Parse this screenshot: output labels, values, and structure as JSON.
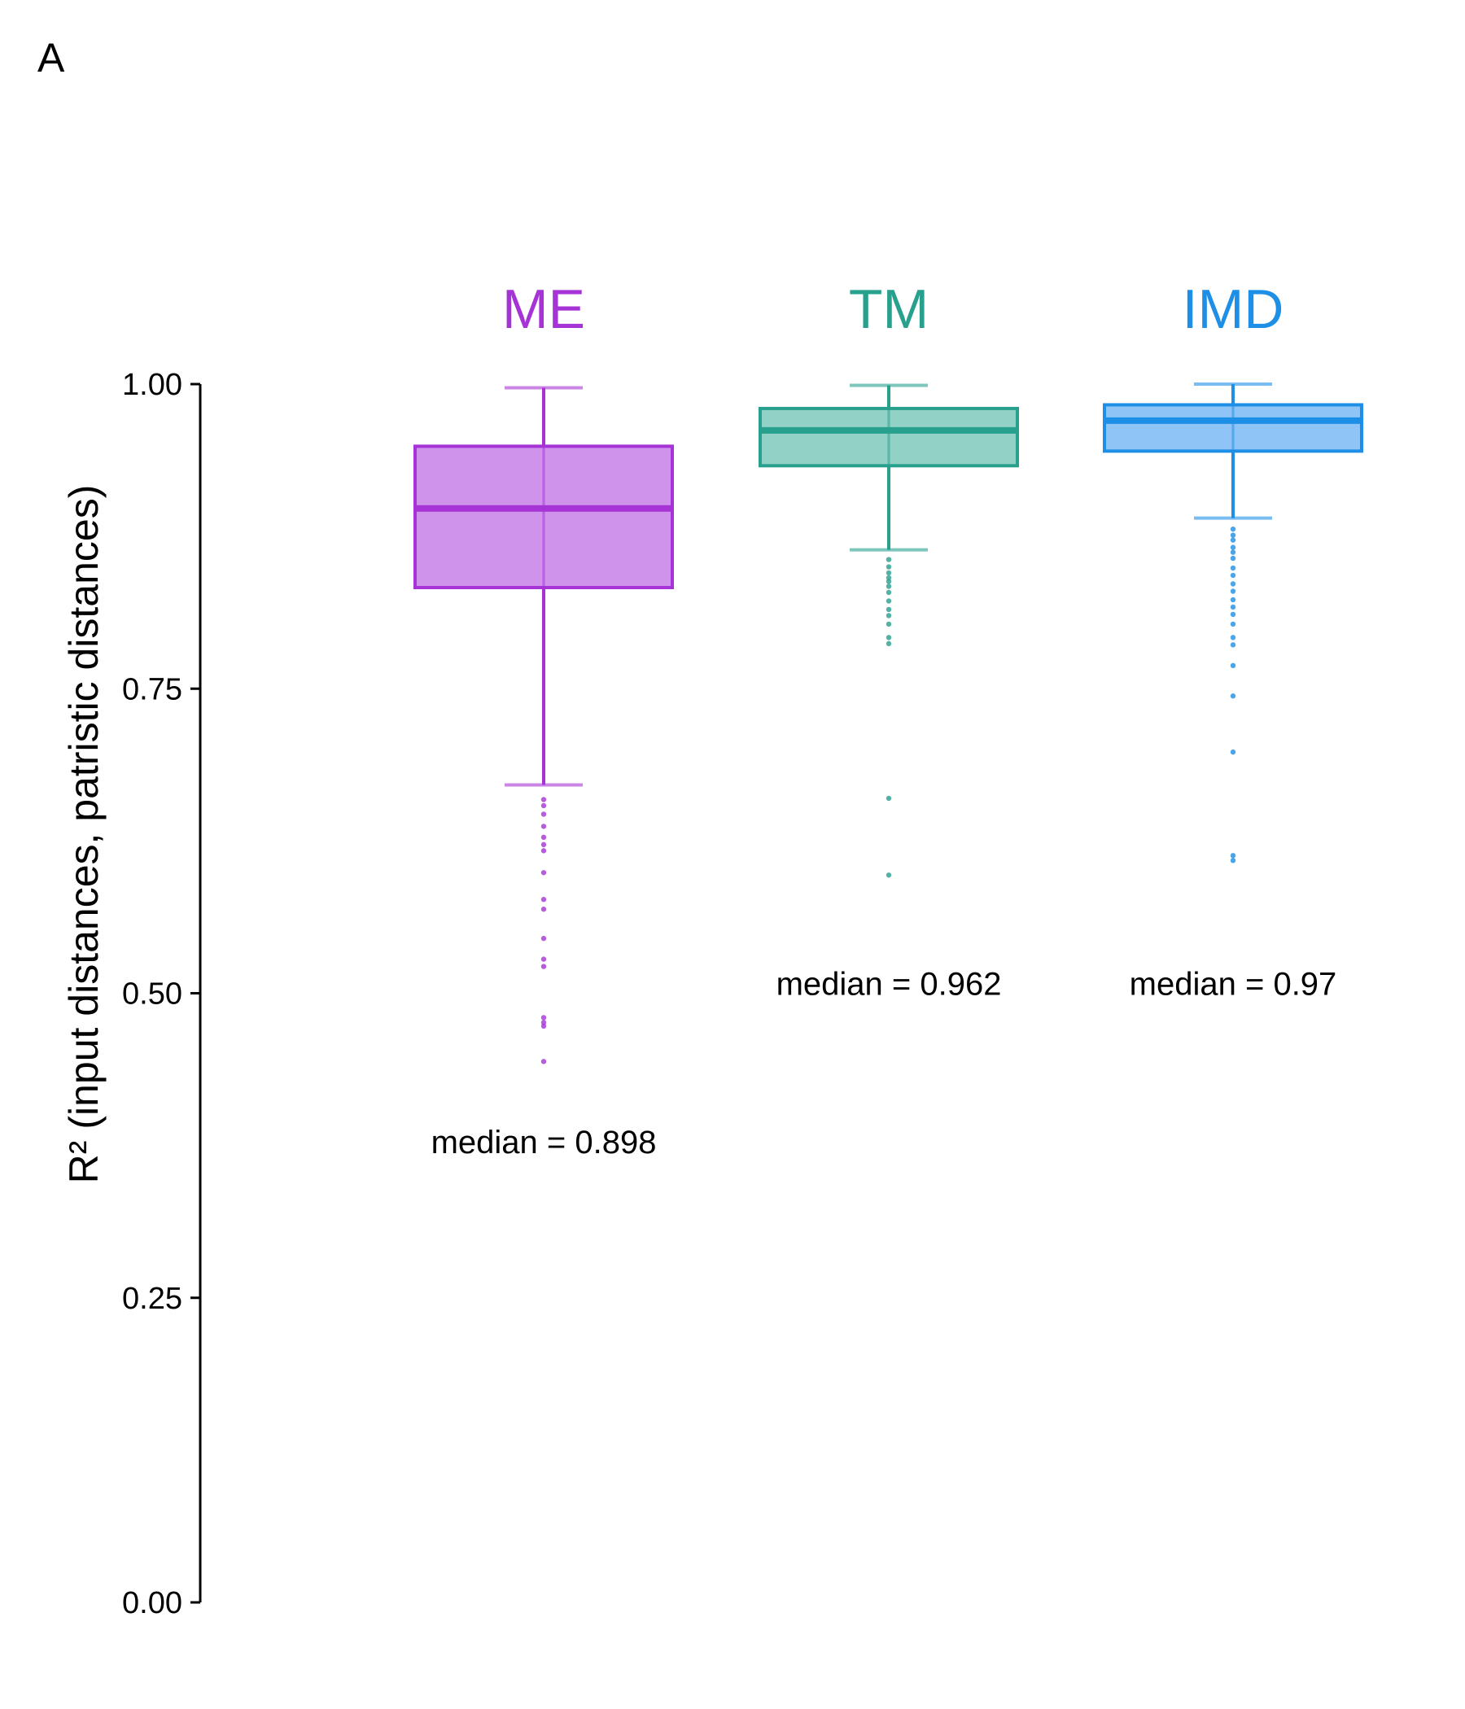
{
  "panel_label": "A",
  "chart_data": {
    "type": "box",
    "ylabel": "R² (input distances, patristic distances)",
    "ylim": [
      0,
      1
    ],
    "yticks": [
      "0.00",
      "0.25",
      "0.50",
      "0.75",
      "1.00"
    ],
    "ytick_values": [
      0,
      0.25,
      0.5,
      0.75,
      1.0
    ],
    "series": [
      {
        "name": "ME",
        "color": "#a633d6",
        "fill": "#cd8deb",
        "q1": 0.833,
        "median": 0.898,
        "q3": 0.949,
        "whisker_low": 0.671,
        "whisker_high": 0.997,
        "outliers": [
          0.659,
          0.654,
          0.647,
          0.637,
          0.628,
          0.622,
          0.617,
          0.599,
          0.577,
          0.569,
          0.545,
          0.528,
          0.522,
          0.48,
          0.476,
          0.473,
          0.444
        ],
        "median_label": "median = 0.898",
        "median_label_y": 0.378
      },
      {
        "name": "TM",
        "color": "#27a08d",
        "fill": "#8bcfc3",
        "q1": 0.933,
        "median": 0.962,
        "q3": 0.98,
        "whisker_low": 0.864,
        "whisker_high": 0.999,
        "outliers": [
          0.856,
          0.85,
          0.845,
          0.841,
          0.838,
          0.834,
          0.829,
          0.822,
          0.815,
          0.81,
          0.803,
          0.792,
          0.787,
          0.66,
          0.597
        ],
        "median_label": "median = 0.962",
        "median_label_y": 0.508
      },
      {
        "name": "IMD",
        "color": "#1e8fe6",
        "fill": "#88c1f5",
        "q1": 0.945,
        "median": 0.97,
        "q3": 0.983,
        "whisker_low": 0.89,
        "whisker_high": 1.0,
        "outliers": [
          0.881,
          0.876,
          0.872,
          0.866,
          0.862,
          0.857,
          0.849,
          0.843,
          0.836,
          0.83,
          0.823,
          0.817,
          0.811,
          0.803,
          0.792,
          0.786,
          0.769,
          0.744,
          0.698,
          0.613,
          0.609
        ],
        "median_label": "median = 0.97",
        "median_label_y": 0.508
      }
    ]
  }
}
